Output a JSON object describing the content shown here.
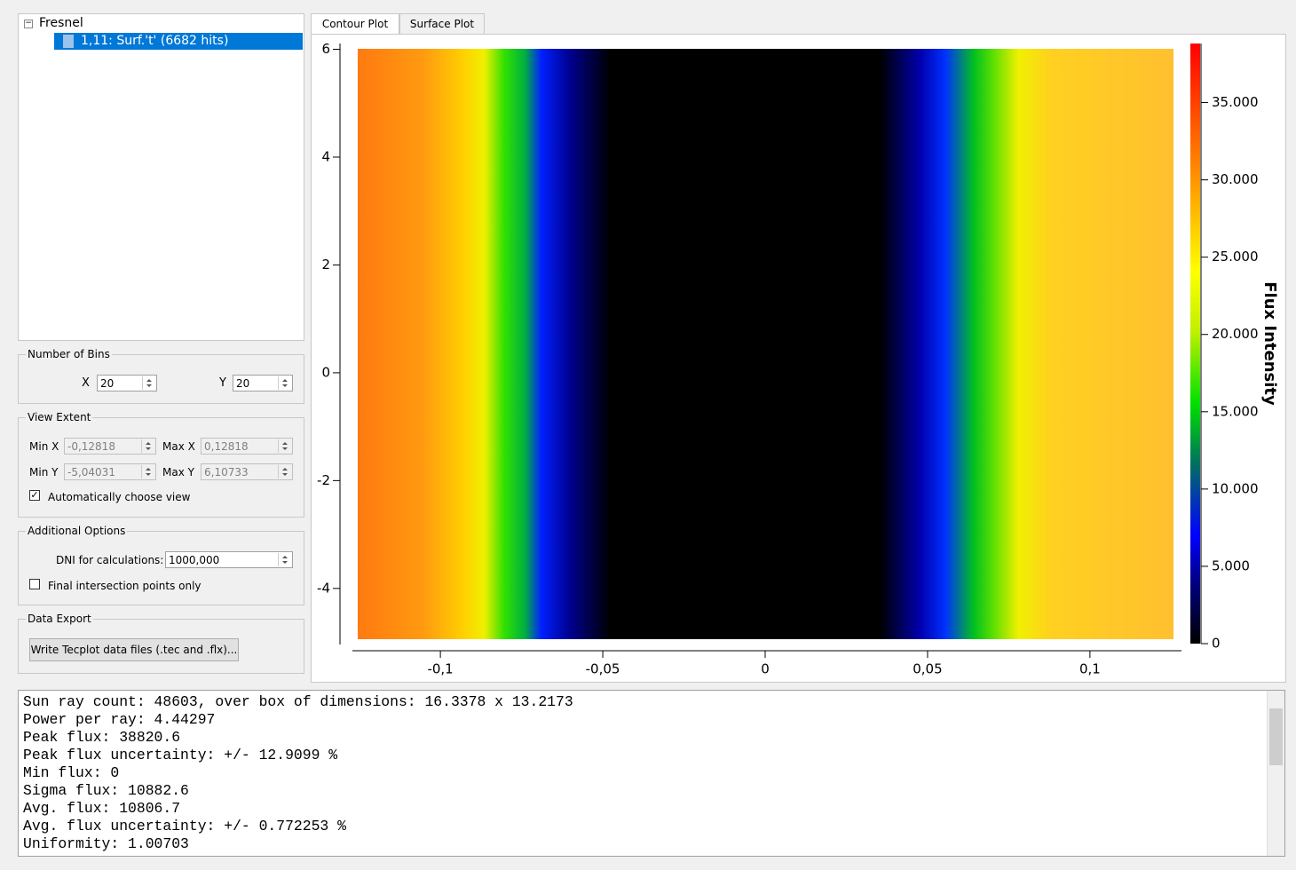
{
  "tree": {
    "root": "Fresnel",
    "item": "1,11: Surf.'t' (6682 hits)"
  },
  "bins": {
    "title": "Number of Bins",
    "x_label": "X",
    "x": "20",
    "y_label": "Y",
    "y": "20"
  },
  "view_extent": {
    "title": "View Extent",
    "min_x_label": "Min X",
    "min_x": "-0,12818",
    "max_x_label": "Max X",
    "max_x": "0,12818",
    "min_y_label": "Min Y",
    "min_y": "-5,04031",
    "max_y_label": "Max Y",
    "max_y": "6,10733",
    "auto_label": "Automatically choose view",
    "auto": true
  },
  "options": {
    "title": "Additional Options",
    "dni_label": "DNI for calculations:",
    "dni": "1000,000",
    "final_label": "Final intersection points only",
    "final": false
  },
  "export": {
    "title": "Data Export",
    "button": "Write Tecplot data files (.tec and .flx)..."
  },
  "tabs": [
    "Contour Plot",
    "Surface Plot"
  ],
  "active_tab": 0,
  "chart_data": {
    "type": "heatmap",
    "colorbar_label": "Flux Intensity",
    "xlim": [
      -0.12818,
      0.12818
    ],
    "xticks": [
      {
        "value": -0.1,
        "label": "-0,1"
      },
      {
        "value": -0.05,
        "label": "-0,05"
      },
      0,
      {
        "value": 0.05,
        "label": "0,05"
      },
      {
        "value": 0.1,
        "label": "0,1"
      }
    ],
    "ylim": [
      -5.04031,
      6.10733
    ],
    "yticks": [
      -4,
      -2,
      0,
      2,
      4,
      6
    ],
    "clim": [
      0,
      38820.6
    ],
    "cticks": [
      0,
      {
        "value": 5000,
        "label": "5.000"
      },
      {
        "value": 10000,
        "label": "10.000"
      },
      {
        "value": 15000,
        "label": "15.000"
      },
      {
        "value": 20000,
        "label": "20.000"
      },
      {
        "value": 25000,
        "label": "25.000"
      },
      {
        "value": 30000,
        "label": "30.000"
      },
      {
        "value": 35000,
        "label": "35.000"
      }
    ]
  },
  "log": [
    "Sun ray count: 48603, over box of dimensions: 16.3378 x 13.2173",
    "Power per ray: 4.44297",
    "Peak flux: 38820.6",
    "Peak flux uncertainty: +/- 12.9099 %",
    "Min flux: 0",
    "Sigma flux: 10882.6",
    "Avg. flux: 10806.7",
    "Avg. flux uncertainty: +/- 0.772253 %",
    "Uniformity: 1.00703"
  ]
}
